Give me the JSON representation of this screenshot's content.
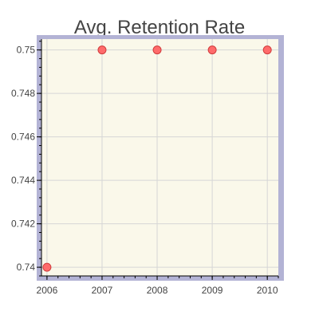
{
  "chart_data": {
    "type": "scatter",
    "title": "Avg. Retention Rate",
    "xlabel": "",
    "ylabel": "",
    "x": [
      2006,
      2007,
      2008,
      2009,
      2010
    ],
    "y": [
      0.74,
      0.75,
      0.75,
      0.75,
      0.75
    ],
    "x_ticks": [
      2006,
      2007,
      2008,
      2009,
      2010
    ],
    "x_tick_labels": [
      "2006",
      "2007",
      "2008",
      "2009",
      "2010"
    ],
    "y_ticks": [
      0.74,
      0.742,
      0.744,
      0.746,
      0.748,
      0.75
    ],
    "y_tick_labels": [
      "0.74",
      "0.742",
      "0.744",
      "0.746",
      "0.748",
      "0.75"
    ],
    "xlim": [
      2005.9,
      2010.2
    ],
    "ylim": [
      0.7396,
      0.7505
    ],
    "grid": true,
    "legend": "none",
    "colors": {
      "plot_background": "#faf8ea",
      "frame": "#b3b3d5",
      "point_fill": "#ff6b6b",
      "point_stroke": "#d03b3b",
      "grid": "#d6d6d6"
    }
  }
}
